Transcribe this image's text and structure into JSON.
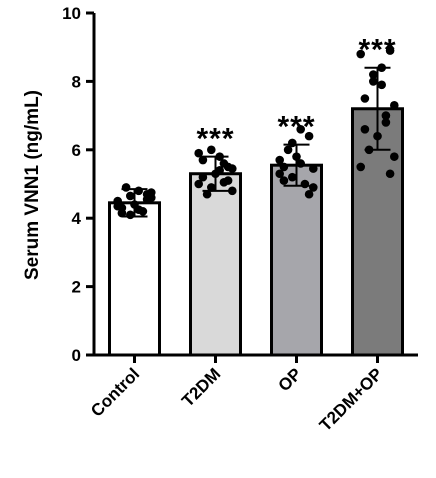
{
  "chart_data": {
    "type": "bar",
    "ylabel": "Serum VNN1 (ng/mL)",
    "xlabel": "",
    "ylim": [
      0,
      10
    ],
    "yticks": [
      0,
      2,
      4,
      6,
      8,
      10
    ],
    "grid": false,
    "categories": [
      "Control",
      "T2DM",
      "OP",
      "T2DM+OP"
    ],
    "values": [
      4.45,
      5.3,
      5.55,
      7.2
    ],
    "sd": [
      0.4,
      0.5,
      0.6,
      1.2
    ],
    "significance": [
      "",
      "***",
      "***",
      "***"
    ],
    "bar_colors": [
      "#ffffff",
      "#d9d9d9",
      "#a6a6ab",
      "#7b7b7b"
    ],
    "points": [
      [
        4.5,
        4.7,
        4.8,
        4.1,
        4.3,
        4.6,
        4.2,
        4.4,
        4.9,
        4.35,
        4.55,
        4.25,
        4.65,
        4.15,
        4.75
      ],
      [
        5.0,
        5.5,
        5.8,
        6.0,
        5.2,
        4.8,
        5.6,
        5.3,
        4.7,
        5.9,
        5.1,
        5.4,
        4.9,
        5.7,
        5.45,
        5.05
      ],
      [
        5.7,
        6.4,
        6.6,
        5.2,
        5.5,
        4.9,
        5.0,
        5.8,
        6.0,
        5.3,
        4.7,
        5.6,
        6.2,
        5.1,
        5.45
      ],
      [
        8.8,
        8.9,
        8.4,
        8.0,
        7.5,
        7.3,
        6.8,
        6.4,
        6.0,
        5.5,
        5.3,
        7.9,
        8.2,
        6.6,
        5.8,
        7.0
      ]
    ]
  }
}
